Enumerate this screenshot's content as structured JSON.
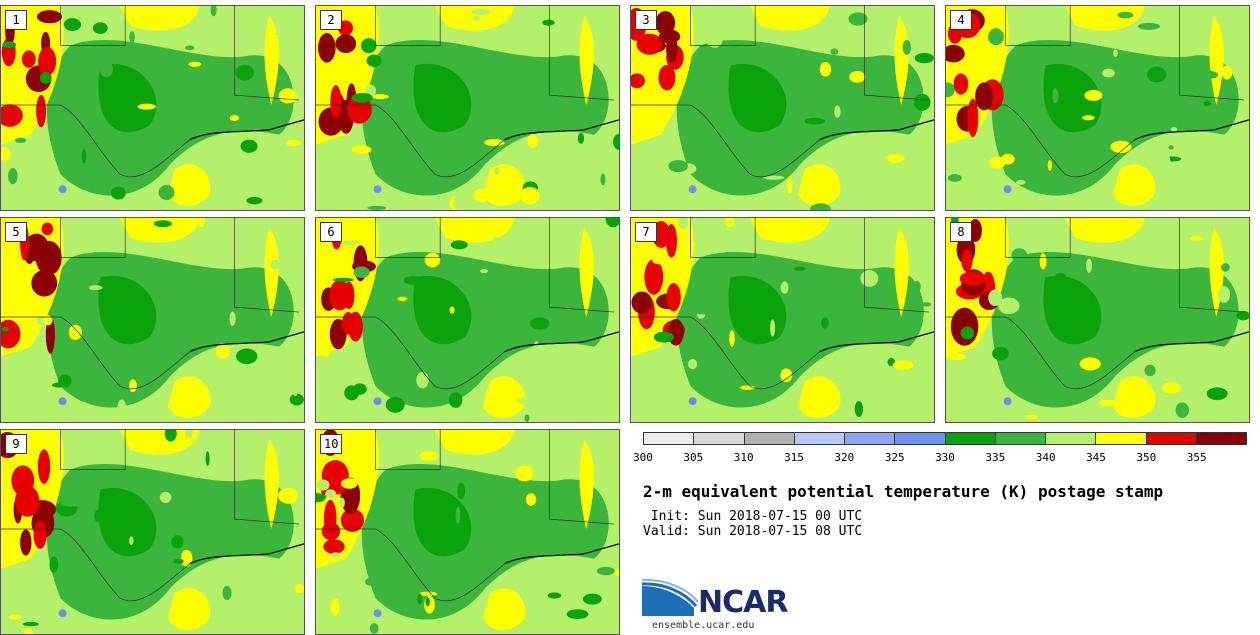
{
  "panels": [
    {
      "label": "1"
    },
    {
      "label": "2"
    },
    {
      "label": "3"
    },
    {
      "label": "4"
    },
    {
      "label": "5"
    },
    {
      "label": "6"
    },
    {
      "label": "7"
    },
    {
      "label": "8"
    },
    {
      "label": "9"
    },
    {
      "label": "10"
    }
  ],
  "colorbar": {
    "colors": [
      "#ececec",
      "#d9d9d9",
      "#b0b0b0",
      "#b5caf7",
      "#8aa6f3",
      "#6d8ff0",
      "#0ba30b",
      "#3cb53c",
      "#b4f06a",
      "#ffff00",
      "#e60000",
      "#8b0000"
    ],
    "ticks": [
      "300",
      "305",
      "310",
      "315",
      "320",
      "325",
      "330",
      "335",
      "340",
      "345",
      "350",
      "355"
    ]
  },
  "title": "2-m equivalent potential temperature (K) postage stamp",
  "init": " Init: Sun 2018-07-15 00 UTC",
  "valid": "Valid: Sun 2018-07-15 08 UTC",
  "logo": {
    "text": "NCAR",
    "url": "ensemble.ucar.edu"
  }
}
